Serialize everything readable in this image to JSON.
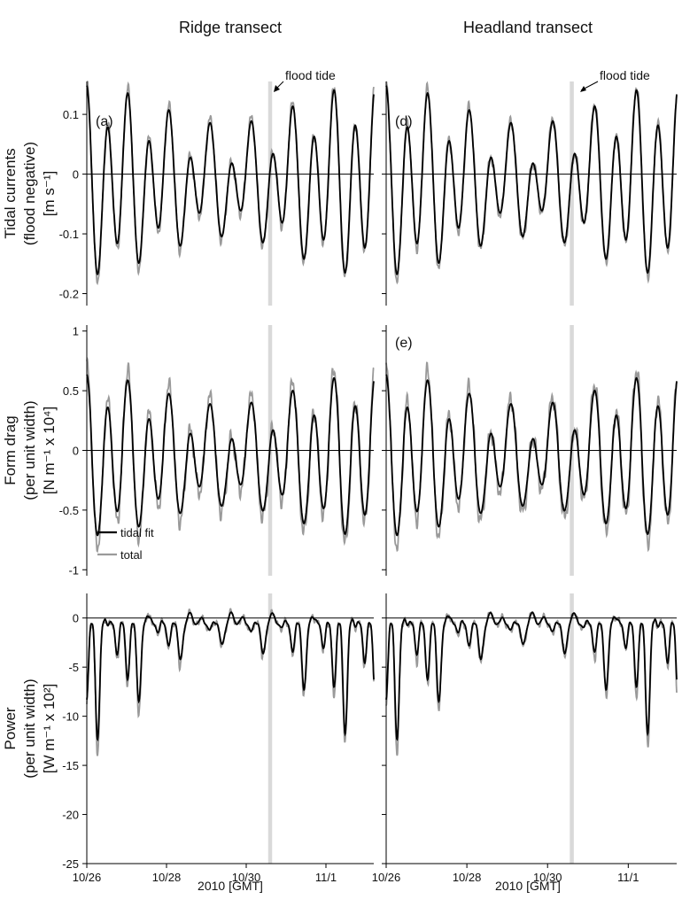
{
  "figure": {
    "columns": [
      "Ridge transect",
      "Headland transect"
    ],
    "annotation": "flood tide",
    "xlabel": "2010 [GMT]",
    "xticks": [
      "10/26",
      "10/28",
      "10/30",
      "11/1"
    ],
    "legend": {
      "fit": "tidal fit",
      "total": "total",
      "placement": "lower-left of panel (b)"
    },
    "colors": {
      "fit": "#000000",
      "total": "#9a9a9a",
      "flood_band": "#d9d9d9"
    }
  },
  "chart_data": [
    {
      "type": "line",
      "panel_label": "(a)",
      "row": 0,
      "col": 0,
      "ylabel": [
        "Tidal currents",
        "(flood negative)",
        "[m s⁻¹]"
      ],
      "yticks": [
        "0.1",
        "0",
        "-0.1",
        "-0.2"
      ],
      "ytick_values": [
        0.1,
        0,
        -0.1,
        -0.2
      ],
      "ylim": [
        -0.22,
        0.155
      ],
      "xlim_days": [
        0,
        7.2
      ],
      "flood_band_days": [
        4.55,
        4.65
      ],
      "series": [
        {
          "name": "tidal fit"
        },
        {
          "name": "total"
        }
      ]
    },
    {
      "type": "line",
      "panel_label": "(d)",
      "row": 0,
      "col": 1,
      "ylabel": [],
      "yticks": [],
      "ytick_values": [
        0.1,
        0,
        -0.1,
        -0.2
      ],
      "ylim": [
        -0.22,
        0.155
      ],
      "xlim_days": [
        0,
        7.2
      ],
      "flood_band_days": [
        4.55,
        4.65
      ],
      "series": [
        {
          "name": "tidal fit"
        },
        {
          "name": "total"
        }
      ]
    },
    {
      "type": "line",
      "panel_label": "",
      "row": 1,
      "col": 0,
      "ylabel": [
        "Form drag",
        "(per unit width)",
        "[N m⁻¹ x 10⁴]"
      ],
      "yticks": [
        "1",
        "0.5",
        "0",
        "-0.5",
        "-1"
      ],
      "ytick_values": [
        1,
        0.5,
        0,
        -0.5,
        -1
      ],
      "ylim": [
        -1.05,
        1.05
      ],
      "xlim_days": [
        0,
        7.2
      ],
      "flood_band_days": [
        4.55,
        4.65
      ],
      "series": [
        {
          "name": "tidal fit"
        },
        {
          "name": "total"
        }
      ]
    },
    {
      "type": "line",
      "panel_label": "(e)",
      "row": 1,
      "col": 1,
      "ylabel": [],
      "yticks": [],
      "ytick_values": [
        1,
        0.5,
        0,
        -0.5,
        -1
      ],
      "ylim": [
        -1.05,
        1.05
      ],
      "xlim_days": [
        0,
        7.2
      ],
      "flood_band_days": [
        4.55,
        4.65
      ],
      "series": [
        {
          "name": "tidal fit"
        },
        {
          "name": "total"
        }
      ]
    },
    {
      "type": "line",
      "panel_label": "",
      "row": 2,
      "col": 0,
      "ylabel": [
        "Power",
        "(per unit width)",
        "[W m⁻¹ x 10²]"
      ],
      "yticks": [
        "0",
        "-5",
        "-10",
        "-15",
        "-20",
        "-25"
      ],
      "ytick_values": [
        0,
        -5,
        -10,
        -15,
        -20,
        -25
      ],
      "ylim": [
        -25,
        2.5
      ],
      "xlim_days": [
        0,
        7.2
      ],
      "flood_band_days": [
        4.55,
        4.65
      ],
      "series": [
        {
          "name": "tidal fit"
        },
        {
          "name": "total"
        }
      ]
    },
    {
      "type": "line",
      "panel_label": "",
      "row": 2,
      "col": 1,
      "ylabel": [],
      "yticks": [],
      "ytick_values": [
        0,
        -5,
        -10,
        -15,
        -20,
        -25
      ],
      "ylim": [
        -25,
        2.5
      ],
      "xlim_days": [
        0,
        7.2
      ],
      "flood_band_days": [
        4.55,
        4.65
      ],
      "series": [
        {
          "name": "tidal fit"
        },
        {
          "name": "total"
        }
      ]
    }
  ]
}
